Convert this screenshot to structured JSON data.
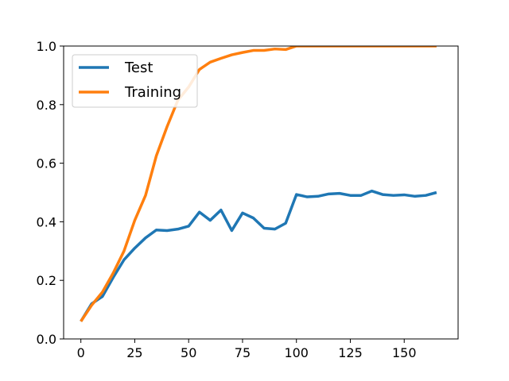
{
  "chart_data": {
    "type": "line",
    "title": "",
    "xlabel": "",
    "ylabel": "",
    "xlim": [
      -8,
      175
    ],
    "ylim": [
      0,
      1.0
    ],
    "x_ticks": [
      0,
      25,
      50,
      75,
      100,
      125,
      150
    ],
    "x_tick_labels": [
      "0",
      "25",
      "50",
      "75",
      "100",
      "125",
      "150"
    ],
    "y_ticks": [
      0,
      0.2,
      0.4,
      0.6,
      0.8,
      1.0
    ],
    "y_tick_labels": [
      "0.0",
      "0.2",
      "0.4",
      "0.6",
      "0.8",
      "1.0"
    ],
    "grid": false,
    "legend_position": "top-left",
    "series": [
      {
        "name": "Test",
        "color": "#1f77b4",
        "x": [
          0,
          5,
          10,
          15,
          20,
          25,
          30,
          35,
          40,
          45,
          50,
          55,
          60,
          65,
          70,
          75,
          80,
          85,
          90,
          95,
          100,
          105,
          110,
          115,
          120,
          125,
          130,
          135,
          140,
          145,
          150,
          155,
          160,
          165
        ],
        "y": [
          0.06,
          0.12,
          0.145,
          0.21,
          0.27,
          0.31,
          0.345,
          0.372,
          0.37,
          0.375,
          0.385,
          0.433,
          0.405,
          0.44,
          0.37,
          0.43,
          0.413,
          0.378,
          0.375,
          0.395,
          0.493,
          0.485,
          0.487,
          0.495,
          0.497,
          0.49,
          0.49,
          0.505,
          0.493,
          0.49,
          0.492,
          0.487,
          0.49,
          0.5
        ]
      },
      {
        "name": "Training",
        "color": "#ff7f0e",
        "x": [
          0,
          5,
          10,
          15,
          20,
          25,
          30,
          35,
          40,
          45,
          50,
          55,
          60,
          65,
          70,
          75,
          80,
          85,
          90,
          95,
          100,
          105,
          110,
          115,
          120,
          125,
          130,
          135,
          140,
          145,
          150,
          155,
          160,
          165
        ],
        "y": [
          0.06,
          0.115,
          0.16,
          0.225,
          0.3,
          0.405,
          0.49,
          0.625,
          0.725,
          0.815,
          0.86,
          0.92,
          0.945,
          0.958,
          0.97,
          0.978,
          0.985,
          0.985,
          0.99,
          0.988,
          1.0,
          1.0,
          1.0,
          1.0,
          1.0,
          1.0,
          1.0,
          1.0,
          1.0,
          1.0,
          1.0,
          1.0,
          1.0,
          1.0
        ]
      }
    ]
  }
}
